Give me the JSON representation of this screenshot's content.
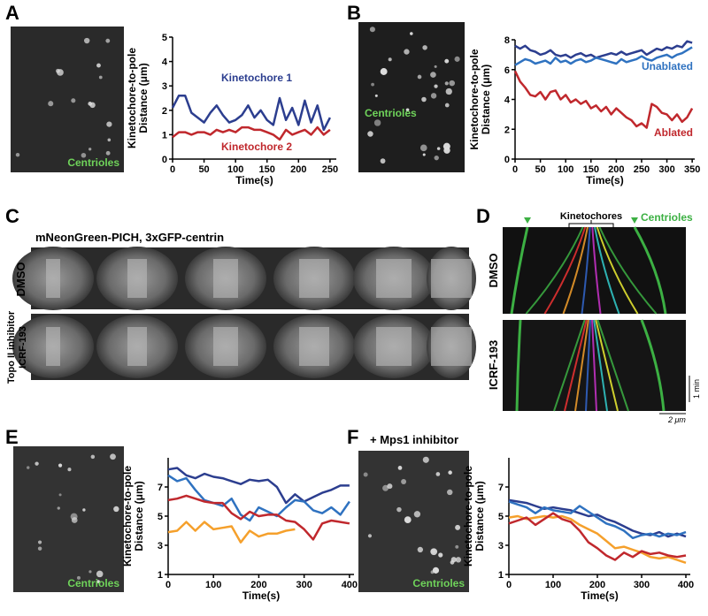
{
  "panel_labels": [
    "A",
    "B",
    "C",
    "D",
    "E",
    "F"
  ],
  "image_labels": {
    "A": "Centrioles",
    "B": "Centrioles",
    "E": "Centrioles",
    "F": "Centrioles"
  },
  "panel_C": {
    "title": "mNeonGreen-PICH, 3xGFP-centrin",
    "rows": [
      [
        "DMSO"
      ],
      [
        "Topo II inhibitor",
        "ICRF-193"
      ]
    ]
  },
  "panel_D": {
    "header": "Kinetochores",
    "centrioles": "Centrioles",
    "rows": [
      "DMSO",
      "ICRF-193"
    ],
    "time_scale": "1 min",
    "space_scale": "2 μm"
  },
  "panel_F": {
    "subtitle": "+ Mps1 inhibitor"
  },
  "chart_data": [
    {
      "type": "line",
      "x_label": "Time(s)",
      "y_label": [
        "Kinetochore-to-pole",
        "Distance (μm)"
      ],
      "x": [
        0,
        10,
        20,
        30,
        40,
        50,
        60,
        70,
        80,
        90,
        100,
        110,
        120,
        130,
        140,
        150,
        160,
        170,
        180,
        190,
        200,
        210,
        220,
        230,
        240,
        250
      ],
      "xlim": [
        0,
        260
      ],
      "xticks": [
        0,
        50,
        100,
        150,
        200,
        250
      ],
      "ylim": [
        0,
        5
      ],
      "yticks": [
        0,
        1,
        2,
        3,
        4,
        5
      ],
      "series": [
        {
          "name": "Kinetochore 1",
          "color": "#2c3e8f",
          "values": [
            2.1,
            2.6,
            2.6,
            1.9,
            1.7,
            1.5,
            1.9,
            2.2,
            1.8,
            1.5,
            1.6,
            1.8,
            2.2,
            1.7,
            2.0,
            1.6,
            1.4,
            2.5,
            1.6,
            2.1,
            1.4,
            2.4,
            1.5,
            2.2,
            1.2,
            1.7
          ]
        },
        {
          "name": "Kinetochore 2",
          "color": "#c0282d",
          "values": [
            0.9,
            1.1,
            1.1,
            1.0,
            1.1,
            1.1,
            1.0,
            1.2,
            1.1,
            1.2,
            1.1,
            1.3,
            1.3,
            1.2,
            1.2,
            1.1,
            1.0,
            0.8,
            1.2,
            1.0,
            1.1,
            1.2,
            1.0,
            1.3,
            1.0,
            1.2
          ]
        }
      ]
    },
    {
      "type": "line",
      "x_label": "Time(s)",
      "y_label": [
        "Kinetochore-to-pole",
        "Distance (μm)"
      ],
      "x": [
        0,
        10,
        20,
        30,
        40,
        50,
        60,
        70,
        80,
        90,
        100,
        110,
        120,
        130,
        140,
        150,
        160,
        170,
        180,
        190,
        200,
        210,
        220,
        230,
        240,
        250,
        260,
        270,
        280,
        290,
        300,
        310,
        320,
        330,
        340,
        350
      ],
      "xlim": [
        0,
        355
      ],
      "xticks": [
        0,
        50,
        100,
        150,
        200,
        250,
        300,
        350
      ],
      "ylim": [
        0,
        8
      ],
      "yticks": [
        0,
        2,
        4,
        6,
        8
      ],
      "series": [
        {
          "color": "#2c3e8f",
          "values": [
            7.6,
            7.4,
            7.6,
            7.3,
            7.2,
            7.0,
            7.1,
            7.3,
            7.0,
            6.9,
            7.0,
            6.8,
            7.0,
            7.1,
            6.9,
            7.0,
            6.8,
            6.9,
            7.0,
            7.1,
            7.0,
            7.2,
            7.0,
            7.1,
            7.2,
            7.3,
            7.0,
            7.2,
            7.4,
            7.3,
            7.5,
            7.4,
            7.6,
            7.5,
            7.9,
            7.8
          ]
        },
        {
          "name": "Unablated",
          "color": "#2f72c0",
          "values": [
            6.3,
            6.5,
            6.7,
            6.6,
            6.4,
            6.5,
            6.6,
            6.4,
            6.8,
            6.5,
            6.6,
            6.4,
            6.6,
            6.7,
            6.5,
            6.6,
            6.8,
            6.7,
            6.6,
            6.5,
            6.4,
            6.7,
            6.5,
            6.6,
            6.7,
            6.9,
            6.7,
            6.6,
            6.8,
            6.9,
            7.0,
            6.8,
            7.0,
            7.1,
            7.3,
            7.5
          ]
        },
        {
          "name": "Ablated",
          "color": "#c0282d",
          "values": [
            5.9,
            5.2,
            4.8,
            4.3,
            4.2,
            4.5,
            4.0,
            4.5,
            4.6,
            4.0,
            4.3,
            3.8,
            4.0,
            3.7,
            3.9,
            3.4,
            3.6,
            3.2,
            3.5,
            3.0,
            3.4,
            3.1,
            2.8,
            2.6,
            2.2,
            2.4,
            2.1,
            3.7,
            3.5,
            3.1,
            3.0,
            2.6,
            3.0,
            2.5,
            2.8,
            3.4
          ]
        }
      ]
    },
    {
      "type": "line",
      "x_label": "Time(s)",
      "y_label": [
        "Kinetochore-to-pole",
        "Distance (μm)"
      ],
      "x": [
        0,
        20,
        40,
        60,
        80,
        100,
        120,
        140,
        160,
        180,
        200,
        220,
        240,
        260,
        280,
        300,
        320,
        340,
        360,
        380,
        400
      ],
      "xlim": [
        0,
        410
      ],
      "xticks": [
        0,
        100,
        200,
        300,
        400
      ],
      "ylim": [
        1,
        9
      ],
      "yticks": [
        1,
        3,
        5,
        7
      ],
      "series": [
        {
          "color": "#2c3e8f",
          "values": [
            8.2,
            8.3,
            7.8,
            7.6,
            7.9,
            7.7,
            7.6,
            7.4,
            7.2,
            7.5,
            7.4,
            7.5,
            7.0,
            5.9,
            6.5,
            6.0,
            6.3,
            6.6,
            6.8,
            7.1,
            7.1
          ]
        },
        {
          "color": "#2f72c0",
          "values": [
            7.8,
            7.4,
            7.6,
            6.8,
            6.1,
            5.9,
            5.7,
            6.2,
            5.1,
            4.7,
            5.6,
            5.3,
            5.0,
            5.6,
            6.1,
            6.0,
            5.4,
            5.2,
            5.6,
            5.1,
            6.0
          ]
        },
        {
          "color": "#c0282d",
          "values": [
            6.1,
            6.2,
            6.4,
            6.2,
            6.0,
            5.9,
            5.9,
            5.2,
            4.8,
            5.3,
            5.0,
            5.1,
            5.1,
            4.7,
            4.6,
            4.1,
            3.4,
            4.5,
            4.7,
            4.6,
            4.5
          ]
        },
        {
          "color": "#f5a02c",
          "values": [
            3.9,
            4.0,
            4.6,
            4.0,
            4.6,
            4.1,
            4.2,
            4.3,
            3.2,
            4.0,
            3.6,
            3.8,
            3.8,
            4.0,
            4.1,
            null,
            null,
            null,
            null,
            null,
            null
          ]
        }
      ]
    },
    {
      "type": "line",
      "x_label": "Time(s)",
      "y_label": [
        "Kinetochore-to-pole",
        "Distance (μm)"
      ],
      "x": [
        0,
        20,
        40,
        60,
        80,
        100,
        120,
        140,
        160,
        180,
        200,
        220,
        240,
        260,
        280,
        300,
        320,
        340,
        360,
        380,
        400
      ],
      "xlim": [
        0,
        410
      ],
      "xticks": [
        0,
        100,
        200,
        300,
        400
      ],
      "ylim": [
        1,
        9
      ],
      "yticks": [
        1,
        3,
        5,
        7
      ],
      "series": [
        {
          "color": "#2c3e8f",
          "values": [
            6.1,
            6.0,
            5.9,
            5.7,
            5.5,
            5.6,
            5.5,
            5.4,
            5.2,
            5.0,
            5.1,
            4.8,
            4.6,
            4.3,
            4.0,
            3.8,
            3.7,
            3.9,
            3.6,
            3.8,
            3.6
          ]
        },
        {
          "color": "#2f72c0",
          "values": [
            6.0,
            5.8,
            5.6,
            5.2,
            5.6,
            5.4,
            5.3,
            5.2,
            5.7,
            5.3,
            4.9,
            4.5,
            4.3,
            4.0,
            3.5,
            3.7,
            3.8,
            3.6,
            3.8,
            3.7,
            3.9
          ]
        },
        {
          "color": "#f5a02c",
          "values": [
            4.9,
            5.0,
            4.8,
            4.9,
            5.0,
            4.9,
            5.0,
            4.8,
            4.4,
            4.1,
            3.8,
            3.3,
            2.8,
            2.9,
            2.7,
            2.5,
            2.2,
            2.1,
            2.2,
            2.0,
            1.8
          ]
        },
        {
          "color": "#c0282d",
          "values": [
            4.5,
            4.7,
            4.9,
            4.4,
            4.8,
            5.2,
            4.8,
            4.6,
            4.0,
            3.2,
            2.8,
            2.3,
            2.0,
            2.5,
            2.2,
            2.6,
            2.4,
            2.5,
            2.3,
            2.2,
            2.3
          ]
        }
      ]
    }
  ]
}
